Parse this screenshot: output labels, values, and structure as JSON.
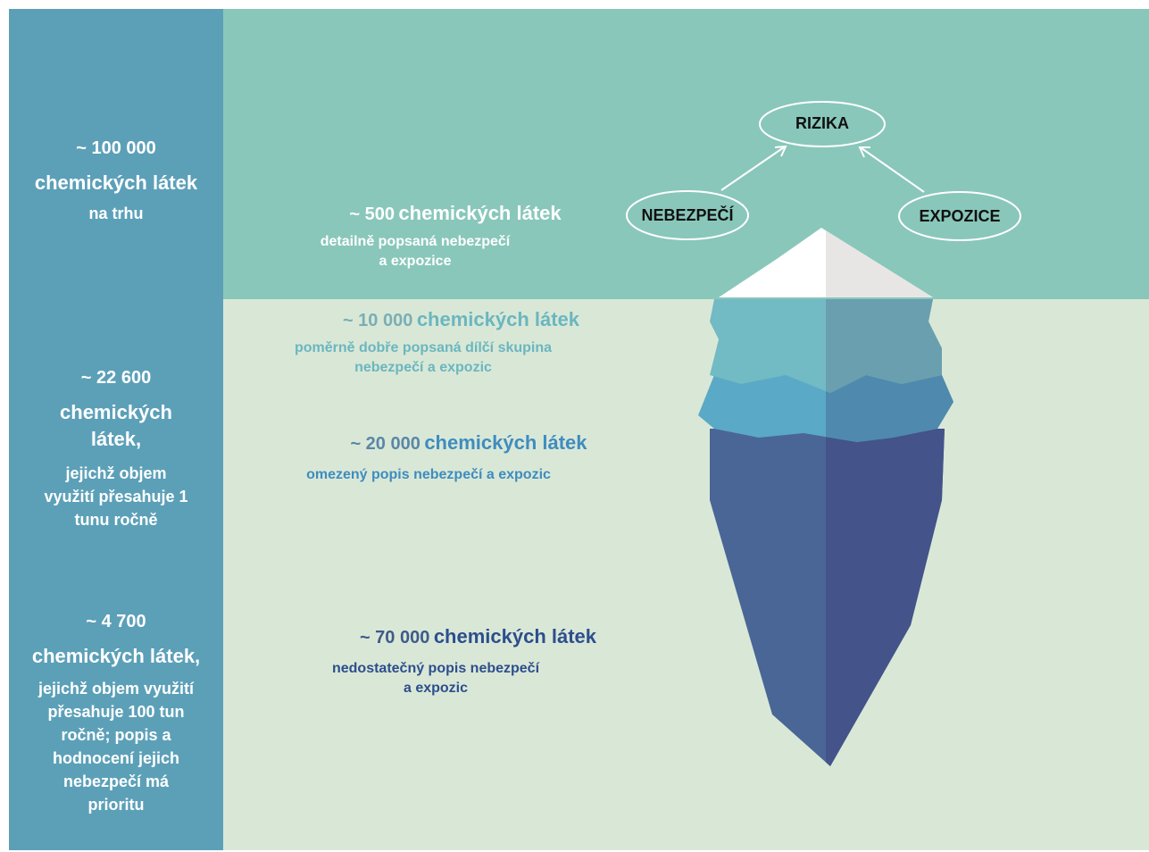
{
  "sidebar": [
    {
      "count": "~ 100 000",
      "lines": [
        "chemických látek",
        "na trhu"
      ]
    },
    {
      "count": "~ 22 600",
      "lines": [
        "chemických",
        "látek,",
        "jejichž objem",
        "využití přesahuje 1",
        "tunu ročně"
      ]
    },
    {
      "count": "~ 4 700",
      "lines": [
        "chemických látek,",
        "jejichž objem využití",
        "přesahuje 100 tun",
        "ročně; popis a",
        "hodnocení  jejich",
        "nebezpečí má",
        "prioritu"
      ]
    }
  ],
  "levels": [
    {
      "count": "~ 500",
      "label": "chemických látek",
      "description": [
        "detailně popsaná nebezpečí",
        "a expozice"
      ]
    },
    {
      "count": "~ 10 000",
      "label": "chemických látek",
      "description": [
        "poměrně dobře popsaná dílčí skupina",
        "nebezpečí a expozic"
      ]
    },
    {
      "count": "~ 20 000",
      "label": "chemických látek",
      "description": [
        "omezený popis nebezpečí a expozic"
      ]
    },
    {
      "count": "~ 70 000",
      "label": "chemických látek",
      "description": [
        "nedostatečný popis nebezpečí",
        "a expozic"
      ]
    }
  ],
  "diagram": {
    "nodes": [
      {
        "label": "RIZIKA"
      },
      {
        "label": "NEBEZPEČÍ"
      },
      {
        "label": "EXPOZICE"
      }
    ]
  }
}
